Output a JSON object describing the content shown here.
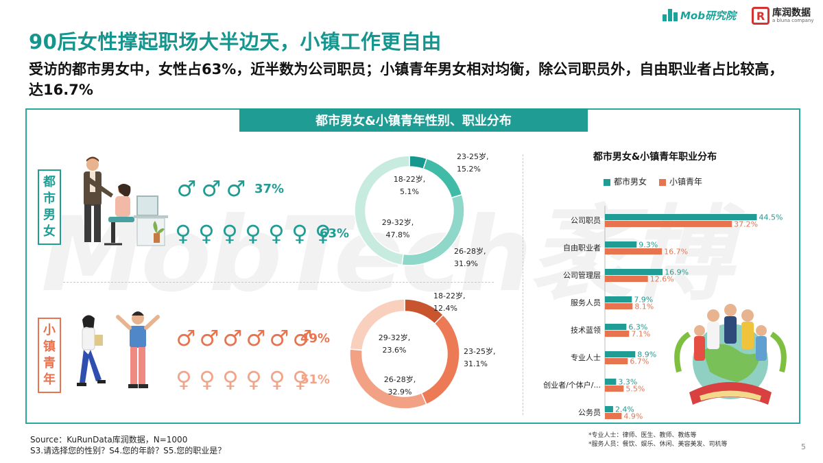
{
  "logos": {
    "mob_text": "Mob研究院",
    "kurun_text": "库润数据",
    "kurun_sub": "a bluna company"
  },
  "title": "90后女性撑起职场大半边天，小镇工作更自由",
  "subtitle": "受访的都市男女中，女性占63%，近半数为公司职员；小镇青年男女相对均衡，除公司职员外，自由职业者占比较高，达16.7%",
  "banner": "都市男女&小镇青年性别、职业分布",
  "watermark": "MobTech袤博",
  "groups": {
    "city": {
      "label_chars": [
        "都",
        "市",
        "男",
        "女"
      ],
      "male_pct": "37%",
      "female_pct": "63%",
      "male_icons": 3,
      "female_icons": 7
    },
    "town": {
      "label_chars": [
        "小",
        "镇",
        "青",
        "年"
      ],
      "male_pct": "49%",
      "female_pct": "51%",
      "male_icons": 6,
      "female_icons": 6
    }
  },
  "icons": {
    "male": "male-sign-icon",
    "female": "female-sign-icon"
  },
  "colors": {
    "teal": "#1f9c94",
    "teal_light": "#8fd8c9",
    "orange": "#e8734f",
    "orange_light": "#f4b09a",
    "orange_dark": "#c9552f"
  },
  "chart_data": [
    {
      "type": "pie",
      "style": "donut",
      "segments": [
        {
          "label": "18-22岁",
          "value": 5.1,
          "value_label": "5.1%",
          "color": "#17988f"
        },
        {
          "label": "23-25岁",
          "value": 15.2,
          "value_label": "15.2%",
          "color": "#3fbba7"
        },
        {
          "label": "26-28岁",
          "value": 31.9,
          "value_label": "31.9%",
          "color": "#8fd8c9"
        },
        {
          "label": "29-32岁",
          "value": 47.8,
          "value_label": "47.8%",
          "color": "#c7ecdf"
        }
      ]
    },
    {
      "type": "pie",
      "style": "donut",
      "segments": [
        {
          "label": "18-22岁",
          "value": 12.4,
          "value_label": "12.4%",
          "color": "#c9552f"
        },
        {
          "label": "23-25岁",
          "value": 31.1,
          "value_label": "31.1%",
          "color": "#ec7b55"
        },
        {
          "label": "26-28岁",
          "value": 32.9,
          "value_label": "32.9%",
          "color": "#f2a184"
        },
        {
          "label": "29-32岁",
          "value": 23.6,
          "value_label": "23.6%",
          "color": "#f9cfbe"
        }
      ]
    },
    {
      "type": "bar",
      "orientation": "horizontal",
      "title": "都市男女&小镇青年职业分布",
      "categories": [
        "公司职员",
        "自由职业者",
        "公司管理层",
        "服务人员",
        "技术蓝领",
        "专业人士",
        "创业者/个体户/...",
        "公务员"
      ],
      "series": [
        {
          "name": "都市男女",
          "color": "#1f9c94",
          "values": [
            44.5,
            9.3,
            16.9,
            7.9,
            6.3,
            8.9,
            3.3,
            2.4
          ]
        },
        {
          "name": "小镇青年",
          "color": "#e8734f",
          "values": [
            37.2,
            16.7,
            12.6,
            8.1,
            7.1,
            6.7,
            5.5,
            4.9
          ]
        }
      ],
      "value_suffix": "%",
      "legend": "top"
    }
  ],
  "source": "Source：KuRunData库润数据，N=1000",
  "questions": "S3.请选择您的性别？S4.您的年龄？S5.您的职业是？",
  "notes": [
    "*专业人士：律师、医生、教师、教练等",
    "*服务人员：餐饮、娱乐、休闲、美容美发、司机等"
  ],
  "page_number": "5"
}
